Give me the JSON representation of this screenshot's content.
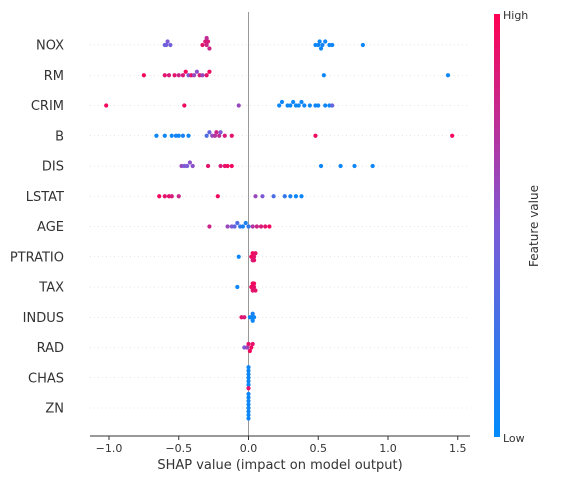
{
  "chart_data": {
    "type": "scatter",
    "subtype": "shap_beeswarm_summary",
    "xlabel": "SHAP value (impact on model output)",
    "xlim": [
      -1.15,
      1.6
    ],
    "xticks": [
      -1.0,
      -0.5,
      0.0,
      0.5,
      1.0,
      1.5
    ],
    "xtick_labels": [
      "−1.0",
      "−0.5",
      "0.0",
      "0.5",
      "1.0",
      "1.5"
    ],
    "features": [
      "NOX",
      "RM",
      "CRIM",
      "B",
      "DIS",
      "LSTAT",
      "AGE",
      "PTRATIO",
      "TAX",
      "INDUS",
      "RAD",
      "CHAS",
      "ZN"
    ],
    "colorbar": {
      "title": "Feature value",
      "high_label": "High",
      "low_label": "Low",
      "low_color": "#008bfb",
      "high_color": "#ff0052"
    },
    "colors": {
      "zero_line": "#999999",
      "row_grid": "#cccccc"
    },
    "points": {
      "NOX": [
        [
          -0.6,
          0.4
        ],
        [
          -0.59,
          0.45
        ],
        [
          -0.58,
          0.5
        ],
        [
          -0.56,
          0.45
        ],
        [
          -0.33,
          0.9
        ],
        [
          -0.31,
          0.85
        ],
        [
          -0.3,
          0.8
        ],
        [
          -0.29,
          0.85
        ],
        [
          -0.28,
          0.8
        ],
        [
          -0.3,
          0.75
        ],
        [
          0.48,
          0.05
        ],
        [
          0.5,
          0.05
        ],
        [
          0.51,
          0.05
        ],
        [
          0.52,
          0.05
        ],
        [
          0.53,
          0.08
        ],
        [
          0.55,
          0.05
        ],
        [
          0.58,
          0.05
        ],
        [
          0.6,
          0.05
        ],
        [
          0.82,
          0.05
        ]
      ],
      "RM": [
        [
          -0.75,
          0.95
        ],
        [
          -0.6,
          0.9
        ],
        [
          -0.57,
          0.85
        ],
        [
          -0.53,
          0.9
        ],
        [
          -0.5,
          0.8
        ],
        [
          -0.47,
          0.85
        ],
        [
          -0.45,
          0.95
        ],
        [
          -0.43,
          0.5
        ],
        [
          -0.41,
          0.9
        ],
        [
          -0.39,
          0.6
        ],
        [
          -0.37,
          0.55
        ],
        [
          -0.35,
          0.85
        ],
        [
          -0.33,
          0.6
        ],
        [
          -0.3,
          0.9
        ],
        [
          -0.28,
          0.95
        ],
        [
          0.54,
          0.05
        ],
        [
          1.43,
          0.05
        ]
      ],
      "CRIM": [
        [
          -1.02,
          0.95
        ],
        [
          -0.46,
          0.95
        ],
        [
          -0.07,
          0.6
        ],
        [
          0.22,
          0.05
        ],
        [
          0.24,
          0.05
        ],
        [
          0.28,
          0.05
        ],
        [
          0.3,
          0.05
        ],
        [
          0.32,
          0.05
        ],
        [
          0.34,
          0.05
        ],
        [
          0.36,
          0.05
        ],
        [
          0.38,
          0.05
        ],
        [
          0.4,
          0.05
        ],
        [
          0.44,
          0.05
        ],
        [
          0.48,
          0.05
        ],
        [
          0.5,
          0.05
        ],
        [
          0.55,
          0.05
        ],
        [
          0.58,
          0.05
        ],
        [
          0.6,
          0.4
        ]
      ],
      "B": [
        [
          -0.66,
          0.05
        ],
        [
          -0.6,
          0.05
        ],
        [
          -0.55,
          0.05
        ],
        [
          -0.52,
          0.1
        ],
        [
          -0.5,
          0.05
        ],
        [
          -0.47,
          0.1
        ],
        [
          -0.43,
          0.05
        ],
        [
          -0.3,
          0.3
        ],
        [
          -0.28,
          0.4
        ],
        [
          -0.26,
          0.6
        ],
        [
          -0.24,
          0.7
        ],
        [
          -0.23,
          0.8
        ],
        [
          -0.21,
          0.75
        ],
        [
          -0.2,
          0.5
        ],
        [
          -0.17,
          0.85
        ],
        [
          -0.12,
          0.9
        ],
        [
          0.48,
          0.95
        ],
        [
          1.46,
          0.95
        ]
      ],
      "DIS": [
        [
          -0.48,
          0.6
        ],
        [
          -0.46,
          0.5
        ],
        [
          -0.44,
          0.5
        ],
        [
          -0.42,
          0.55
        ],
        [
          -0.4,
          0.55
        ],
        [
          -0.29,
          0.9
        ],
        [
          -0.2,
          0.85
        ],
        [
          -0.17,
          0.9
        ],
        [
          -0.15,
          0.95
        ],
        [
          -0.12,
          0.95
        ],
        [
          0.52,
          0.05
        ],
        [
          0.66,
          0.05
        ],
        [
          0.76,
          0.05
        ],
        [
          0.89,
          0.05
        ]
      ],
      "LSTAT": [
        [
          -0.64,
          0.95
        ],
        [
          -0.6,
          0.9
        ],
        [
          -0.57,
          0.9
        ],
        [
          -0.55,
          0.85
        ],
        [
          -0.5,
          0.8
        ],
        [
          -0.22,
          0.95
        ],
        [
          0.05,
          0.6
        ],
        [
          0.1,
          0.5
        ],
        [
          0.18,
          0.3
        ],
        [
          0.26,
          0.2
        ],
        [
          0.3,
          0.1
        ],
        [
          0.34,
          0.05
        ],
        [
          0.38,
          0.05
        ]
      ],
      "AGE": [
        [
          -0.28,
          0.8
        ],
        [
          -0.15,
          0.6
        ],
        [
          -0.12,
          0.5
        ],
        [
          -0.1,
          0.4
        ],
        [
          -0.08,
          0.3
        ],
        [
          -0.06,
          0.2
        ],
        [
          -0.04,
          0.1
        ],
        [
          -0.02,
          0.1
        ],
        [
          0.0,
          0.2
        ],
        [
          0.03,
          0.7
        ],
        [
          0.06,
          0.8
        ],
        [
          0.09,
          0.85
        ],
        [
          0.12,
          0.9
        ],
        [
          0.15,
          0.95
        ]
      ],
      "PTRATIO": [
        [
          -0.07,
          0.05
        ],
        [
          0.02,
          0.95
        ],
        [
          0.03,
          0.95
        ],
        [
          0.04,
          0.9
        ],
        [
          0.05,
          0.9
        ],
        [
          0.03,
          0.85
        ],
        [
          0.04,
          0.9
        ]
      ],
      "TAX": [
        [
          -0.08,
          0.05
        ],
        [
          0.02,
          0.95
        ],
        [
          0.03,
          0.95
        ],
        [
          0.04,
          0.9
        ],
        [
          0.03,
          0.9
        ],
        [
          0.04,
          0.95
        ],
        [
          0.05,
          0.9
        ]
      ],
      "INDUS": [
        [
          -0.05,
          0.9
        ],
        [
          -0.03,
          0.85
        ],
        [
          0.01,
          0.05
        ],
        [
          0.02,
          0.05
        ],
        [
          0.03,
          0.1
        ],
        [
          0.04,
          0.05
        ],
        [
          0.03,
          0.05
        ]
      ],
      "RAD": [
        [
          -0.03,
          0.5
        ],
        [
          -0.01,
          0.6
        ],
        [
          0.0,
          0.9
        ],
        [
          0.01,
          0.95
        ],
        [
          0.02,
          0.95
        ],
        [
          0.03,
          0.9
        ]
      ],
      "CHAS": [
        [
          0.0,
          0.05
        ],
        [
          0.0,
          0.05
        ],
        [
          0.0,
          0.05
        ],
        [
          0.0,
          0.05
        ],
        [
          0.0,
          0.05
        ],
        [
          0.0,
          0.05
        ],
        [
          0.0,
          0.9
        ]
      ],
      "ZN": [
        [
          0.0,
          0.05
        ],
        [
          0.0,
          0.05
        ],
        [
          0.0,
          0.05
        ],
        [
          0.0,
          0.05
        ],
        [
          0.0,
          0.05
        ],
        [
          0.0,
          0.05
        ],
        [
          0.0,
          0.05
        ],
        [
          0.0,
          0.05
        ]
      ]
    },
    "point_value_fields": [
      "shap_value",
      "feature_value_normalized"
    ]
  }
}
